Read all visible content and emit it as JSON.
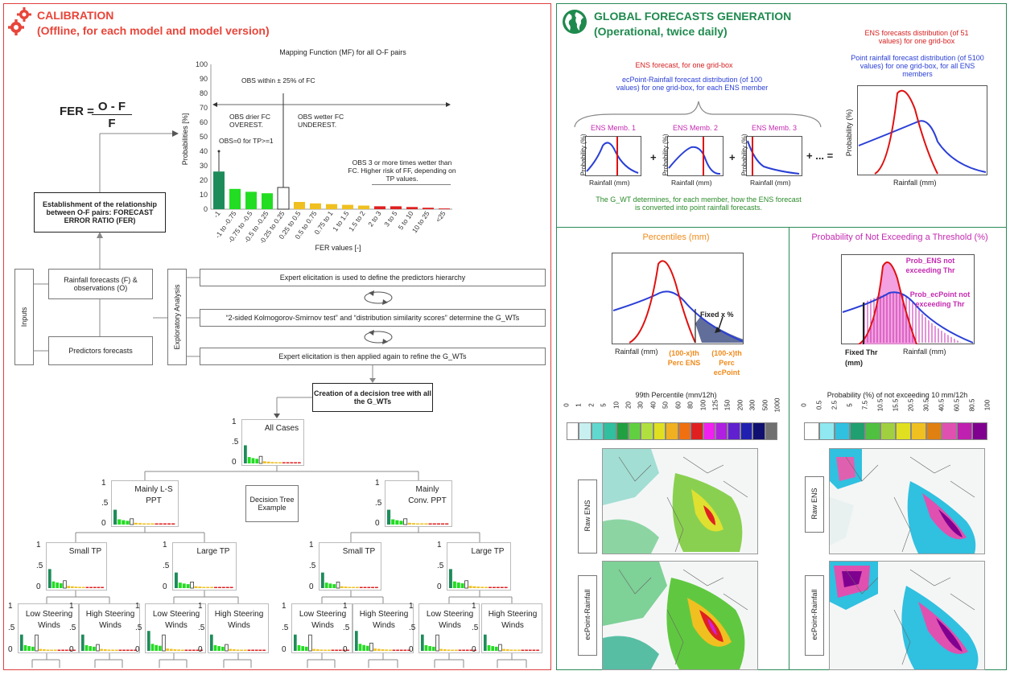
{
  "left": {
    "title": "CALIBRATION",
    "subtitle": "(Offline, for each model and model version)",
    "fer_formula": {
      "lhs": "FER =",
      "numerator": "O - F",
      "denominator": "F"
    },
    "establish_box": "Establishment of the relationship between O-F pairs: FORECAST ERROR RATIO (FER)",
    "inputs_label": "Inputs",
    "input_rainfall": "Rainfall forecasts (F) & observations (O)",
    "input_predictors": "Predictors forecasts",
    "exploratory_label": "Exploratory Analysis",
    "step1": "Expert elicitation is used to define the predictors hierarchy",
    "step2": "“2-sided Kolmogorov-Smirnov test” and “distribution similarity scores” determine the G_WTs",
    "step3": "Expert elicitation is then applied again to refine the G_WTs",
    "creation_box": "Creation of a decision tree with all the G_WTs",
    "tree_example": "Decision Tree Example",
    "tree_nodes": {
      "root": "All Cases",
      "l1_left": "Mainly L-S PPT",
      "l1_right": "Mainly Conv. PPT",
      "l2": [
        "Small TP",
        "Large TP",
        "Small TP",
        "Large TP"
      ],
      "l3": [
        "Low Steering Winds",
        "High Steering Winds",
        "Low Steering Winds",
        "High Steering Winds",
        "Low Steering Winds",
        "High Steering Winds",
        "Low Steering Winds",
        "High Steering Winds"
      ]
    },
    "mini_ticks": [
      "1",
      ".5",
      "0"
    ]
  },
  "chart_data": {
    "type": "bar",
    "title": "Mapping Function (MF) for all O-F pairs",
    "xlabel": "FER values [-]",
    "ylabel": "Probabilities [%]",
    "ylim": [
      0,
      100
    ],
    "yticks": [
      "100",
      "90",
      "80",
      "70",
      "60",
      "50",
      "40",
      "30",
      "20",
      "10",
      "0"
    ],
    "categories": [
      "-1",
      "-1 to -0.75",
      "-0.75 to -0.5",
      "-0.5 to -0.25",
      "-0.25 to 0.25",
      "0.25 to 0.5",
      "0.5 to 0.75",
      "0.75 to 1",
      "1 to 1.5",
      "1.5 to 2",
      "2 to 3",
      "3 to 5",
      "5 to 10",
      "10 to 25",
      "<25"
    ],
    "values": [
      26,
      14,
      12,
      11,
      15,
      5,
      4,
      3.5,
      3,
      2.5,
      2,
      2,
      1.5,
      1,
      0.5
    ],
    "colors": [
      "#1e8c5a",
      "#22dd22",
      "#22dd22",
      "#22dd22",
      "#ffffff",
      "#f0c020",
      "#f0c020",
      "#f0c020",
      "#f0c020",
      "#f0c020",
      "#e02020",
      "#e02020",
      "#e02020",
      "#e02020",
      "#e02020"
    ],
    "annotations": {
      "within": "OBS within ± 25% of FC",
      "drier": "OBS drier FC OVEREST.",
      "wetter": "OBS wetter FC UNDEREST.",
      "zero": "OBS=0 for TP>=1",
      "three": "OBS 3 or more times wetter than FC. Higher risk of FF, depending on TP values."
    }
  },
  "right": {
    "title": "GLOBAL FORECASTS GENERATION",
    "subtitle": "(Operational, twice daily)",
    "ens_fc_label": "ENS forecast, for one grid-box",
    "ecpoint_dist_label": "ecPoint-Rainfall forecast distribution (of 100 values) for one grid-box, for each ENS member",
    "members": [
      "ENS Memb. 1",
      "ENS Memb. 2",
      "ENS Memb. 3"
    ],
    "prob_axis": "Probability (%)",
    "rain_axis": "Rainfall (mm)",
    "plus": "+",
    "plus_dots": "+ ... =",
    "gwt_note": "The G_WT determines, for each member, how the ENS forecast is converted into point rainfall forecasts.",
    "ens_dist_51": "ENS forecasts distribution (of 51 values) for one grid-box",
    "point_dist_5100": "Point rainfall forecast distribution (of 5100 values) for one grid-box, for all ENS members",
    "percentiles_title": "Percentiles (mm)",
    "fixed_x": "Fixed x %",
    "perc_ens": "(100-x)th Perc ENS",
    "perc_ecpoint": "(100-x)th Perc ecPoint",
    "prob_title": "Probability of Not Exceeding a Threshold (%)",
    "prob_ens_not": "Prob_ENS not exceeding Thr",
    "prob_ecpoint_not": "Prob_ecPoint not exceeding Thr",
    "fixed_thr": "Fixed Thr (mm)",
    "p99_title": "99th Percentile (mm/12h)",
    "p99_ticks": [
      "0",
      "1",
      "2",
      "5",
      "10",
      "20",
      "30",
      "40",
      "50",
      "60",
      "80",
      "100",
      "125",
      "150",
      "200",
      "300",
      "500",
      "1000"
    ],
    "p99_colors": [
      "#ffffff",
      "#c8f0f0",
      "#60d8d0",
      "#30c0a0",
      "#20a040",
      "#60d040",
      "#b0e040",
      "#e0e020",
      "#f0b020",
      "#f07010",
      "#e02020",
      "#f020f0",
      "#b020e0",
      "#6020d0",
      "#2020b0",
      "#101070",
      "#707070"
    ],
    "prob_scale_title": "Probability (%) of not exceeding 10 mm/12h",
    "prob_ticks": [
      "0",
      "0.5",
      "2.5",
      "5",
      "7.5",
      "10.5",
      "15.5",
      "20.5",
      "30.5",
      "40.5",
      "60.5",
      "80.5",
      "100"
    ],
    "prob_colors": [
      "#ffffff",
      "#90e8f0",
      "#30c0e0",
      "#20a070",
      "#50c040",
      "#a0d040",
      "#e0e020",
      "#f0c020",
      "#e08010",
      "#e050b0",
      "#c020b0",
      "#800090"
    ],
    "row_raw": "Raw ENS",
    "row_ecpoint": "ecPoint-Rainfall"
  }
}
